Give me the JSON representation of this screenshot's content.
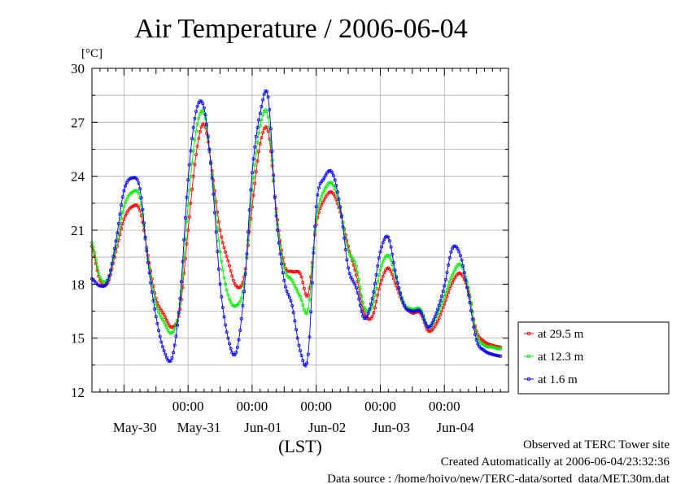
{
  "chart_data": {
    "type": "line",
    "title": "Air Temperature / 2006-06-04",
    "ylabel": "[°C]",
    "xlabel": "(LST)",
    "ylim": [
      12,
      30
    ],
    "yticks": [
      "12",
      "15",
      "18",
      "21",
      "24",
      "27",
      "30"
    ],
    "xlim": [
      "2006-05-29 12:00",
      "2006-06-05 00:00"
    ],
    "time_ticks": [
      "00:00",
      "00:00",
      "00:00",
      "00:00",
      "00:00"
    ],
    "day_labels": [
      "May-30",
      "May-31",
      "Jun-01",
      "Jun-02",
      "Jun-03",
      "Jun-04"
    ],
    "grid": true,
    "legend_position": "right",
    "series": [
      {
        "name": "at 29.5 m",
        "color": "#ff0000",
        "points": [
          [
            "2006-05-29 12:00",
            20.1
          ],
          [
            "2006-05-29 15:00",
            18.2
          ],
          [
            "2006-05-29 18:00",
            18.1
          ],
          [
            "2006-05-29 21:00",
            19.8
          ],
          [
            "2006-05-30 00:00",
            21.6
          ],
          [
            "2006-05-30 03:00",
            22.3
          ],
          [
            "2006-05-30 06:00",
            22.1
          ],
          [
            "2006-05-30 09:00",
            19.6
          ],
          [
            "2006-05-30 12:00",
            17.2
          ],
          [
            "2006-05-30 15:00",
            16.3
          ],
          [
            "2006-05-30 18:00",
            15.6
          ],
          [
            "2006-05-30 21:00",
            16.6
          ],
          [
            "2006-05-31 00:00",
            21.0
          ],
          [
            "2006-05-31 03:00",
            25.2
          ],
          [
            "2006-05-31 06:00",
            26.9
          ],
          [
            "2006-05-31 09:00",
            24.3
          ],
          [
            "2006-05-31 12:00",
            21.0
          ],
          [
            "2006-05-31 15:00",
            19.3
          ],
          [
            "2006-05-31 18:00",
            17.9
          ],
          [
            "2006-05-31 21:00",
            18.4
          ],
          [
            "2006-06-01 00:00",
            22.3
          ],
          [
            "2006-06-01 03:00",
            25.8
          ],
          [
            "2006-06-01 06:00",
            26.5
          ],
          [
            "2006-06-01 09:00",
            22.2
          ],
          [
            "2006-06-01 12:00",
            19.1
          ],
          [
            "2006-06-01 15:00",
            18.7
          ],
          [
            "2006-06-01 18:00",
            18.6
          ],
          [
            "2006-06-01 21:00",
            17.4
          ],
          [
            "2006-06-02 00:00",
            21.3
          ],
          [
            "2006-06-02 03:00",
            22.7
          ],
          [
            "2006-06-02 06:00",
            23.1
          ],
          [
            "2006-06-02 09:00",
            22.0
          ],
          [
            "2006-06-02 12:00",
            20.1
          ],
          [
            "2006-06-02 15:00",
            18.5
          ],
          [
            "2006-06-02 18:00",
            16.4
          ],
          [
            "2006-06-02 21:00",
            16.2
          ],
          [
            "2006-06-03 00:00",
            18.0
          ],
          [
            "2006-06-03 03:00",
            18.9
          ],
          [
            "2006-06-03 06:00",
            17.9
          ],
          [
            "2006-06-03 09:00",
            16.8
          ],
          [
            "2006-06-03 12:00",
            16.4
          ],
          [
            "2006-06-03 15:00",
            16.4
          ],
          [
            "2006-06-03 18:00",
            15.4
          ],
          [
            "2006-06-03 21:00",
            15.8
          ],
          [
            "2006-06-04 00:00",
            16.9
          ],
          [
            "2006-06-04 03:00",
            18.1
          ],
          [
            "2006-06-04 06:00",
            18.6
          ],
          [
            "2006-06-04 09:00",
            17.6
          ],
          [
            "2006-06-04 12:00",
            15.4
          ],
          [
            "2006-06-04 15:00",
            14.8
          ],
          [
            "2006-06-04 18:00",
            14.6
          ],
          [
            "2006-06-04 21:00",
            14.5
          ]
        ]
      },
      {
        "name": "at 12.3 m",
        "color": "#00ee00",
        "points": [
          [
            "2006-05-29 12:00",
            20.3
          ],
          [
            "2006-05-29 15:00",
            18.4
          ],
          [
            "2006-05-29 18:00",
            18.3
          ],
          [
            "2006-05-29 21:00",
            20.1
          ],
          [
            "2006-05-30 00:00",
            22.3
          ],
          [
            "2006-05-30 03:00",
            23.1
          ],
          [
            "2006-05-30 06:00",
            22.8
          ],
          [
            "2006-05-30 09:00",
            19.4
          ],
          [
            "2006-05-30 12:00",
            16.9
          ],
          [
            "2006-05-30 15:00",
            15.9
          ],
          [
            "2006-05-30 18:00",
            15.3
          ],
          [
            "2006-05-30 21:00",
            16.9
          ],
          [
            "2006-05-31 00:00",
            22.4
          ],
          [
            "2006-05-31 03:00",
            26.5
          ],
          [
            "2006-05-31 06:00",
            27.5
          ],
          [
            "2006-05-31 09:00",
            24.1
          ],
          [
            "2006-05-31 12:00",
            19.8
          ],
          [
            "2006-05-31 15:00",
            17.4
          ],
          [
            "2006-05-31 18:00",
            16.8
          ],
          [
            "2006-05-31 21:00",
            18.0
          ],
          [
            "2006-06-01 00:00",
            23.2
          ],
          [
            "2006-06-01 03:00",
            26.8
          ],
          [
            "2006-06-01 06:00",
            27.3
          ],
          [
            "2006-06-01 09:00",
            22.0
          ],
          [
            "2006-06-01 12:00",
            18.9
          ],
          [
            "2006-06-01 15:00",
            18.2
          ],
          [
            "2006-06-01 18:00",
            17.3
          ],
          [
            "2006-06-01 21:00",
            16.6
          ],
          [
            "2006-06-02 00:00",
            21.6
          ],
          [
            "2006-06-02 03:00",
            23.2
          ],
          [
            "2006-06-02 06:00",
            23.6
          ],
          [
            "2006-06-02 09:00",
            22.2
          ],
          [
            "2006-06-02 12:00",
            19.9
          ],
          [
            "2006-06-02 15:00",
            19.0
          ],
          [
            "2006-06-02 18:00",
            16.7
          ],
          [
            "2006-06-02 21:00",
            16.8
          ],
          [
            "2006-06-03 00:00",
            18.8
          ],
          [
            "2006-06-03 03:00",
            19.6
          ],
          [
            "2006-06-03 06:00",
            18.3
          ],
          [
            "2006-06-03 09:00",
            16.9
          ],
          [
            "2006-06-03 12:00",
            16.6
          ],
          [
            "2006-06-03 15:00",
            16.6
          ],
          [
            "2006-06-03 18:00",
            15.6
          ],
          [
            "2006-06-03 21:00",
            16.2
          ],
          [
            "2006-06-04 00:00",
            17.3
          ],
          [
            "2006-06-04 03:00",
            18.5
          ],
          [
            "2006-06-04 06:00",
            19.1
          ],
          [
            "2006-06-04 09:00",
            17.8
          ],
          [
            "2006-06-04 12:00",
            15.2
          ],
          [
            "2006-06-04 15:00",
            14.6
          ],
          [
            "2006-06-04 18:00",
            14.5
          ],
          [
            "2006-06-04 21:00",
            14.4
          ]
        ]
      },
      {
        "name": "at 1.6 m",
        "color": "#0000ff",
        "points": [
          [
            "2006-05-29 12:00",
            18.3
          ],
          [
            "2006-05-29 15:00",
            17.9
          ],
          [
            "2006-05-29 18:00",
            18.2
          ],
          [
            "2006-05-29 21:00",
            20.4
          ],
          [
            "2006-05-30 00:00",
            23.2
          ],
          [
            "2006-05-30 03:00",
            23.9
          ],
          [
            "2006-05-30 06:00",
            23.3
          ],
          [
            "2006-05-30 09:00",
            19.2
          ],
          [
            "2006-05-30 12:00",
            16.2
          ],
          [
            "2006-05-30 15:00",
            14.3
          ],
          [
            "2006-05-30 18:00",
            13.9
          ],
          [
            "2006-05-30 21:00",
            17.2
          ],
          [
            "2006-05-31 00:00",
            23.8
          ],
          [
            "2006-05-31 03:00",
            27.6
          ],
          [
            "2006-05-31 06:00",
            27.8
          ],
          [
            "2006-05-31 09:00",
            23.9
          ],
          [
            "2006-05-31 12:00",
            18.0
          ],
          [
            "2006-05-31 15:00",
            15.0
          ],
          [
            "2006-05-31 18:00",
            14.2
          ],
          [
            "2006-05-31 21:00",
            17.6
          ],
          [
            "2006-06-01 00:00",
            24.2
          ],
          [
            "2006-06-01 03:00",
            27.5
          ],
          [
            "2006-06-01 06:00",
            28.4
          ],
          [
            "2006-06-01 09:00",
            21.8
          ],
          [
            "2006-06-01 12:00",
            18.2
          ],
          [
            "2006-06-01 15:00",
            16.8
          ],
          [
            "2006-06-01 18:00",
            14.3
          ],
          [
            "2006-06-01 21:00",
            14.1
          ],
          [
            "2006-06-02 00:00",
            22.3
          ],
          [
            "2006-06-02 03:00",
            23.9
          ],
          [
            "2006-06-02 06:00",
            24.2
          ],
          [
            "2006-06-02 09:00",
            22.3
          ],
          [
            "2006-06-02 12:00",
            18.9
          ],
          [
            "2006-06-02 15:00",
            17.8
          ],
          [
            "2006-06-02 18:00",
            16.1
          ],
          [
            "2006-06-02 21:00",
            17.2
          ],
          [
            "2006-06-03 00:00",
            19.8
          ],
          [
            "2006-06-03 03:00",
            20.6
          ],
          [
            "2006-06-03 06:00",
            18.4
          ],
          [
            "2006-06-03 09:00",
            16.8
          ],
          [
            "2006-06-03 12:00",
            16.5
          ],
          [
            "2006-06-03 15:00",
            16.5
          ],
          [
            "2006-06-03 18:00",
            15.6
          ],
          [
            "2006-06-03 21:00",
            16.4
          ],
          [
            "2006-06-04 00:00",
            17.9
          ],
          [
            "2006-06-04 03:00",
            20.0
          ],
          [
            "2006-06-04 06:00",
            19.6
          ],
          [
            "2006-06-04 09:00",
            17.4
          ],
          [
            "2006-06-04 12:00",
            14.9
          ],
          [
            "2006-06-04 15:00",
            14.3
          ],
          [
            "2006-06-04 18:00",
            14.1
          ],
          [
            "2006-06-04 21:00",
            14.0
          ]
        ]
      }
    ]
  },
  "footer": {
    "site": "Observed at TERC Tower site",
    "created": "Created Automatically at 2006-06-04/23:32:36",
    "source": "Data source : /home/hoivo/new/TERC-data/sorted  data/MET.30m.dat"
  }
}
